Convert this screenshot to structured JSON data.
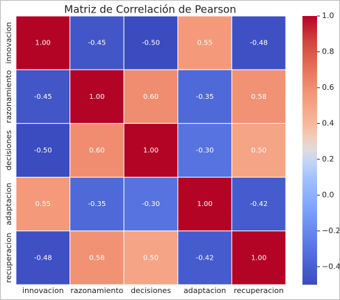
{
  "chart_data": {
    "type": "heatmap",
    "title": "Matriz de Correlación de Pearson",
    "x_categories": [
      "innovacion",
      "razonamiento",
      "decisiones",
      "adaptacion",
      "recuperacion"
    ],
    "y_categories": [
      "innovacion",
      "razonamiento",
      "decisiones",
      "adaptacion",
      "recuperacion"
    ],
    "values": [
      [
        1.0,
        -0.45,
        -0.5,
        0.55,
        -0.48
      ],
      [
        -0.45,
        1.0,
        0.6,
        -0.35,
        0.58
      ],
      [
        -0.5,
        0.6,
        1.0,
        -0.3,
        0.5
      ],
      [
        0.55,
        -0.35,
        -0.3,
        1.0,
        -0.42
      ],
      [
        -0.48,
        0.58,
        0.5,
        -0.42,
        1.0
      ]
    ],
    "value_labels": [
      [
        "1.00",
        "-0.45",
        "-0.50",
        "0.55",
        "-0.48"
      ],
      [
        "-0.45",
        "1.00",
        "0.60",
        "-0.35",
        "0.58"
      ],
      [
        "-0.50",
        "0.60",
        "1.00",
        "-0.30",
        "0.50"
      ],
      [
        "0.55",
        "-0.35",
        "-0.30",
        "1.00",
        "-0.42"
      ],
      [
        "-0.48",
        "0.58",
        "0.50",
        "-0.42",
        "1.00"
      ]
    ],
    "colormap": "coolwarm",
    "zlim": [
      -0.5,
      1.0
    ],
    "zticks": [
      {
        "value": 1.0,
        "label": "1.0"
      },
      {
        "value": 0.8,
        "label": "0.8"
      },
      {
        "value": 0.6,
        "label": "0.6"
      },
      {
        "value": 0.4,
        "label": "0.4"
      },
      {
        "value": 0.2,
        "label": "0.2"
      },
      {
        "value": 0.0,
        "label": "0.0"
      },
      {
        "value": -0.2,
        "label": "−0.2"
      },
      {
        "value": -0.4,
        "label": "−0.4"
      }
    ]
  }
}
